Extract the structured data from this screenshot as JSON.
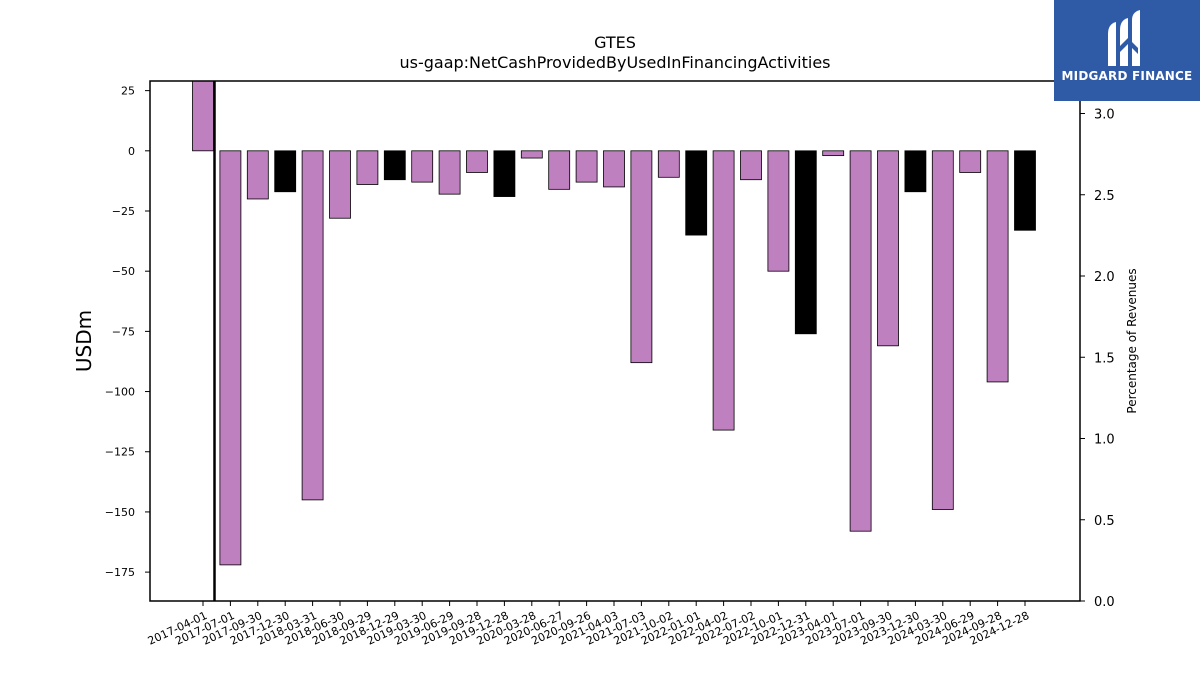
{
  "brand": {
    "name": "MIDGARD FINANCE",
    "logo_icon": "midgard-m-logo-icon",
    "color": "#2f5aa6"
  },
  "chart_data": {
    "type": "bar",
    "title": "GTES",
    "subtitle": "us-gaap:NetCashProvidedByUsedInFinancingActivities",
    "ylabel": "USDm",
    "y2label": "Percentage of Revenues",
    "ylim": [
      -187,
      29
    ],
    "y2lim": [
      0.0,
      3.2
    ],
    "yticks": [
      25,
      0,
      -25,
      -50,
      -75,
      -100,
      -125,
      -150,
      -175
    ],
    "y2ticks": [
      3.0,
      2.5,
      2.0,
      1.5,
      1.0,
      0.5,
      0.0
    ],
    "categories": [
      "2017-04-01",
      "2017-07-01",
      "2017-09-30",
      "2017-12-30",
      "2018-03-31",
      "2018-06-30",
      "2018-09-29",
      "2018-12-29",
      "2019-03-30",
      "2019-06-29",
      "2019-09-28",
      "2019-12-28",
      "2020-03-28",
      "2020-06-27",
      "2020-09-26",
      "2021-04-03",
      "2021-07-03",
      "2021-10-02",
      "2022-01-01",
      "2022-04-02",
      "2022-07-02",
      "2022-10-01",
      "2022-12-31",
      "2023-04-01",
      "2023-07-01",
      "2023-09-30",
      "2023-12-30",
      "2024-03-30",
      "2024-06-29",
      "2024-09-28",
      "2024-12-28"
    ],
    "values": [
      29,
      -172,
      -20,
      -17,
      -145,
      -28,
      -14,
      -12,
      -13,
      -18,
      -9,
      -19,
      -3,
      -16,
      -13,
      -15,
      -88,
      -11,
      -35,
      -116,
      -12,
      -50,
      -76,
      -2,
      -158,
      -81,
      -17,
      -149,
      -9,
      -96,
      -33
    ],
    "colors": [
      "#bf80bf",
      "#bf80bf",
      "#bf80bf",
      "#000000",
      "#bf80bf",
      "#bf80bf",
      "#bf80bf",
      "#000000",
      "#bf80bf",
      "#bf80bf",
      "#bf80bf",
      "#000000",
      "#bf80bf",
      "#bf80bf",
      "#bf80bf",
      "#bf80bf",
      "#bf80bf",
      "#bf80bf",
      "#000000",
      "#bf80bf",
      "#bf80bf",
      "#bf80bf",
      "#000000",
      "#bf80bf",
      "#bf80bf",
      "#bf80bf",
      "#000000",
      "#bf80bf",
      "#bf80bf",
      "#bf80bf",
      "#000000"
    ],
    "vline_x": "2017-04-01",
    "grid": false
  }
}
